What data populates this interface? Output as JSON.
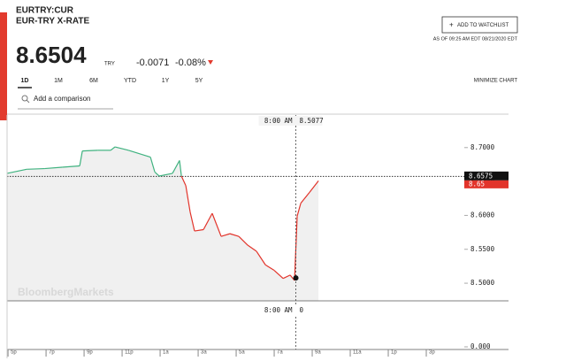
{
  "header": {
    "symbol": "EURTRY:CUR",
    "name": "EUR-TRY X-RATE",
    "price": "8.6504",
    "currency": "TRY",
    "change": "-0.0071",
    "change_pct": "-0.08%",
    "watchlist": "ADD TO WATCHLIST",
    "as_of": "AS OF 09:25 AM EDT 08/21/2020 EDT"
  },
  "toolbar": {
    "ranges": [
      "1D",
      "1M",
      "6M",
      "YTD",
      "1Y",
      "5Y"
    ],
    "minimize": "MINIMIZE CHART",
    "comparison_placeholder": "Add a comparison"
  },
  "chart_data": {
    "type": "line",
    "watermark": "BloombergMarkets",
    "x": [
      -0.19,
      0.84,
      1.77,
      2.7,
      3.63,
      3.77,
      4.56,
      5.26,
      5.49,
      6.19,
      6.88,
      7.35,
      7.58,
      7.81,
      8.51,
      8.88,
      8.98,
      9.21,
      9.44,
      9.67,
      10.14,
      10.6,
      11.07,
      11.53,
      12.0,
      12.47,
      12.93,
      13.4,
      13.86,
      14.33,
      14.7,
      14.93,
      15.07,
      15.26,
      15.72,
      16.19
    ],
    "series": [
      {
        "color": "#3fb27f",
        "down_color": "#e2342b",
        "values": [
          8.662,
          8.668,
          8.669,
          8.671,
          8.673,
          8.695,
          8.696,
          8.696,
          8.701,
          8.696,
          8.69,
          8.686,
          8.664,
          8.658,
          8.662,
          8.681,
          8.658,
          8.644,
          8.605,
          8.577,
          8.579,
          8.603,
          8.569,
          8.573,
          8.569,
          8.556,
          8.547,
          8.527,
          8.519,
          8.507,
          8.512,
          8.504,
          8.599,
          8.618,
          8.634,
          8.651
        ]
      }
    ],
    "xlim": [
      -0.19,
      23.86
    ],
    "xticks": [
      {
        "value": 0,
        "label": "5p"
      },
      {
        "value": 2,
        "label": "7p"
      },
      {
        "value": 4,
        "label": "9p"
      },
      {
        "value": 6,
        "label": "11p"
      },
      {
        "value": 8,
        "label": "1a"
      },
      {
        "value": 10,
        "label": "3a"
      },
      {
        "value": 12,
        "label": "5a"
      },
      {
        "value": 14,
        "label": "7a"
      },
      {
        "value": 16,
        "label": "9a"
      },
      {
        "value": 18,
        "label": "11a"
      },
      {
        "value": 20,
        "label": "1p"
      },
      {
        "value": 22,
        "label": "3p"
      }
    ],
    "ylim": [
      8.474,
      8.748
    ],
    "yticks": [
      {
        "value": 8.7,
        "label": "8.7000"
      },
      {
        "value": 8.65,
        "label": "8.6500"
      },
      {
        "value": 8.6,
        "label": "8.6000"
      },
      {
        "value": 8.55,
        "label": "8.5500"
      },
      {
        "value": 8.5,
        "label": "8.5000"
      }
    ],
    "reference": 8.6575,
    "last": 8.65,
    "crosshair": {
      "x": 15,
      "label": "8:00 AM",
      "value": 8.5077
    },
    "volume_crosshair": {
      "label": "8:00 AM",
      "value": 0
    },
    "volume_ticks": [
      {
        "value": 0,
        "label": "0.000"
      }
    ]
  }
}
